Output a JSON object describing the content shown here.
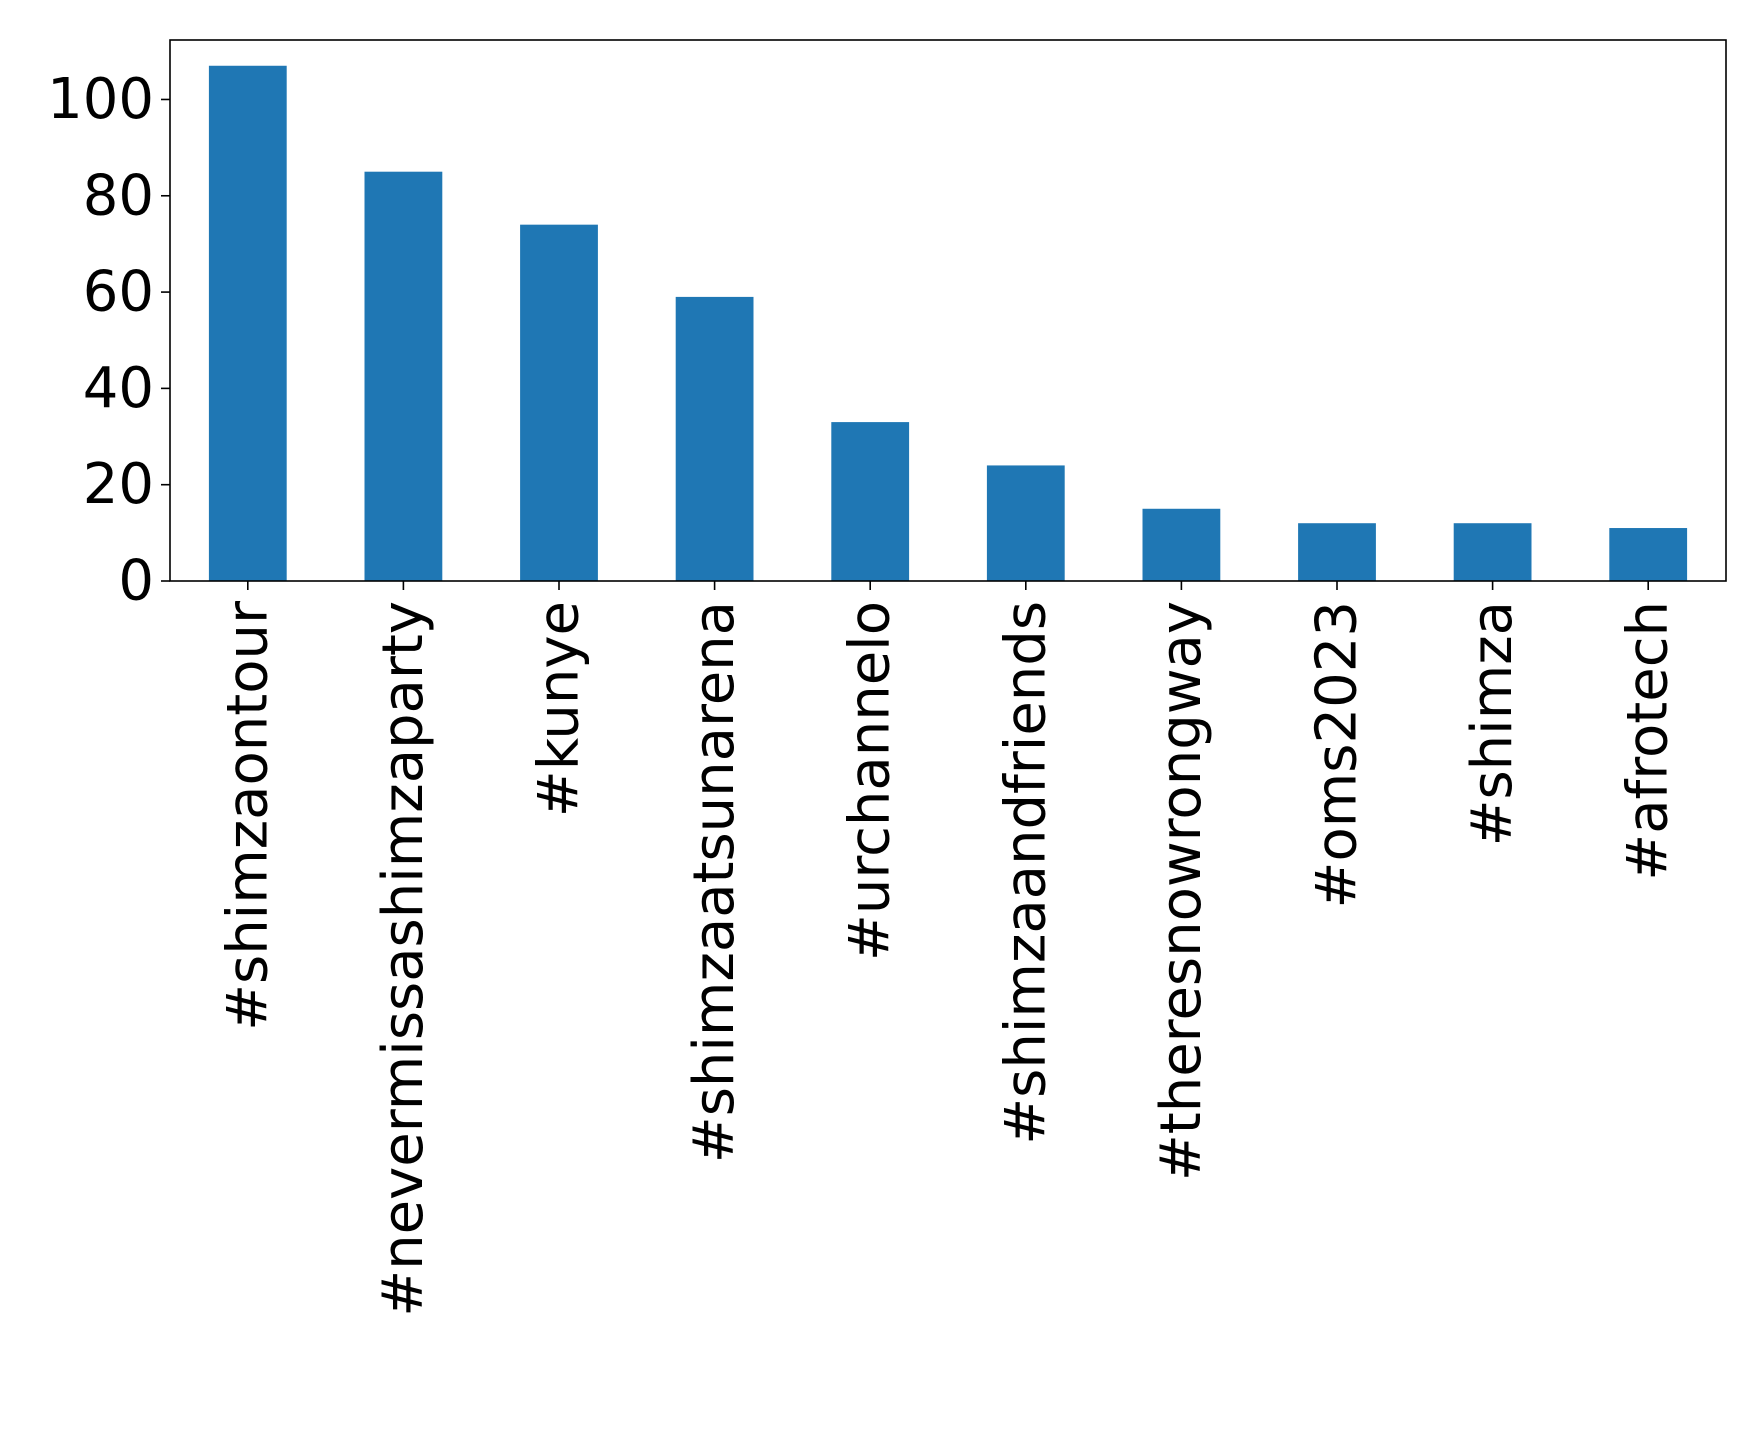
{
  "chart_data": {
    "type": "bar",
    "title": "",
    "xlabel": "",
    "ylabel": "",
    "categories": [
      "#shimzaontour",
      "#nevermissashimzaparty",
      "#kunye",
      "#shimzaatsunarena",
      "#urchannelo",
      "#shimzaandfriends",
      "#theresnowrongway",
      "#oms2023",
      "#shimza",
      "#afrotech"
    ],
    "values": [
      107,
      85,
      74,
      59,
      33,
      24,
      15,
      12,
      12,
      11
    ],
    "ylim": [
      0,
      112.35
    ],
    "yticks": [
      0,
      20,
      40,
      60,
      80,
      100
    ],
    "ytick_labels": [
      "0",
      "20",
      "40",
      "60",
      "80",
      "100"
    ],
    "bar_color": "#1f77b4",
    "grid": false,
    "legend": false
  }
}
